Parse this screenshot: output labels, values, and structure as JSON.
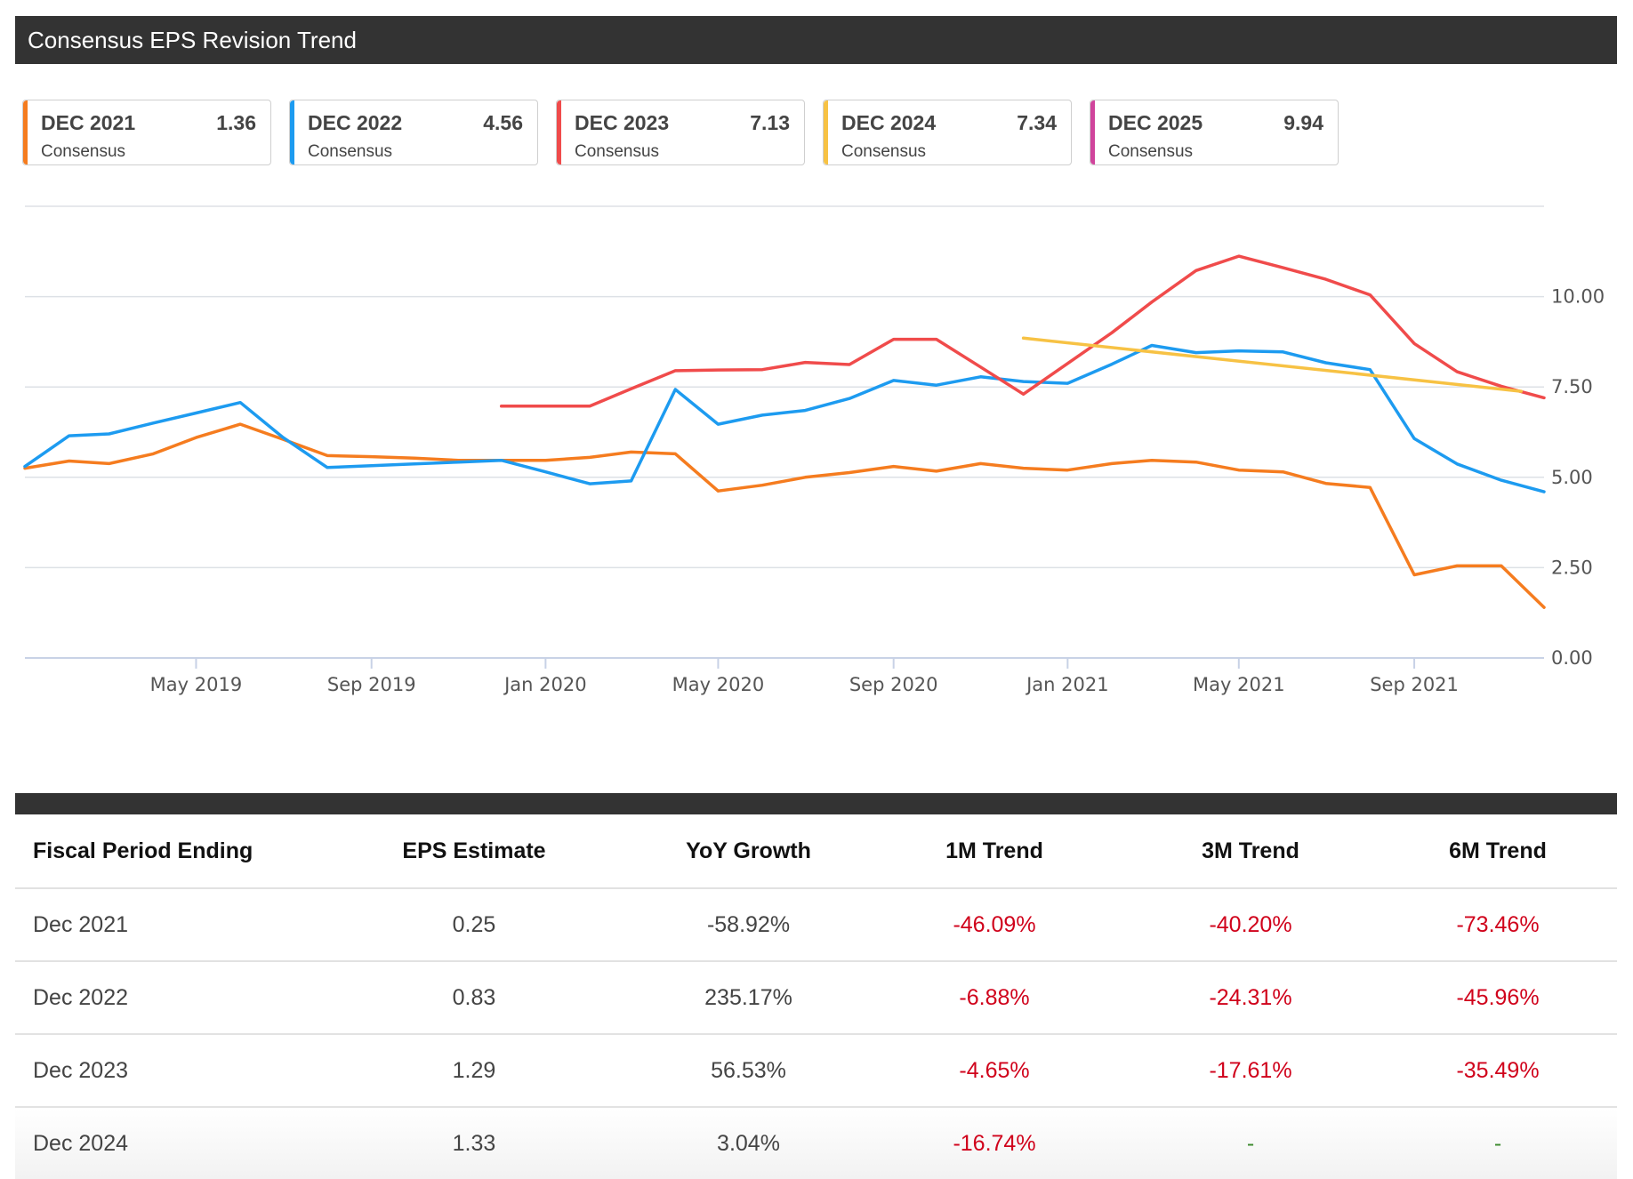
{
  "title": "Consensus EPS Revision Trend",
  "colors": {
    "dec2021": "#f57c1f",
    "dec2022": "#1d9bf0",
    "dec2023": "#f04b4b",
    "dec2024": "#f7c244",
    "dec2025": "#d0449c",
    "negative": "#d0021b"
  },
  "legend": [
    {
      "name": "DEC 2021",
      "value": "1.36",
      "sub": "Consensus",
      "color": "#f57c1f"
    },
    {
      "name": "DEC 2022",
      "value": "4.56",
      "sub": "Consensus",
      "color": "#1d9bf0"
    },
    {
      "name": "DEC 2023",
      "value": "7.13",
      "sub": "Consensus",
      "color": "#f04b4b"
    },
    {
      "name": "DEC 2024",
      "value": "7.34",
      "sub": "Consensus",
      "color": "#f7c244"
    },
    {
      "name": "DEC 2025",
      "value": "9.94",
      "sub": "Consensus",
      "color": "#d0449c"
    }
  ],
  "chart_data": {
    "type": "line",
    "xlim": [
      "2019-01-01",
      "2021-12-01"
    ],
    "ylim": [
      0,
      12.5
    ],
    "yticks": [
      0,
      2.5,
      5,
      7.5,
      10
    ],
    "ytick_labels": [
      "0.00",
      "2.50",
      "5.00",
      "7.50",
      "10.00"
    ],
    "xticks": [
      "2019-05-01",
      "2019-09-01",
      "2020-01-01",
      "2020-05-01",
      "2020-09-01",
      "2021-01-01",
      "2021-05-01",
      "2021-09-01"
    ],
    "xtick_labels": [
      "May 2019",
      "Sep 2019",
      "Jan 2020",
      "May 2020",
      "Sep 2020",
      "Jan 2021",
      "May 2021",
      "Sep 2021"
    ],
    "grid": true,
    "series": [
      {
        "name": "DEC 2021",
        "color": "#f57c1f",
        "points": [
          [
            "2019-01-01",
            5.25
          ],
          [
            "2019-02-01",
            5.45
          ],
          [
            "2019-03-01",
            5.38
          ],
          [
            "2019-04-01",
            5.65
          ],
          [
            "2019-05-01",
            6.1
          ],
          [
            "2019-06-01",
            6.47
          ],
          [
            "2019-07-01",
            6.05
          ],
          [
            "2019-08-01",
            5.6
          ],
          [
            "2019-09-01",
            5.57
          ],
          [
            "2019-10-01",
            5.53
          ],
          [
            "2019-11-01",
            5.47
          ],
          [
            "2019-12-01",
            5.47
          ],
          [
            "2020-01-01",
            5.47
          ],
          [
            "2020-02-01",
            5.55
          ],
          [
            "2020-03-01",
            5.7
          ],
          [
            "2020-04-01",
            5.65
          ],
          [
            "2020-05-01",
            4.62
          ],
          [
            "2020-06-01",
            4.78
          ],
          [
            "2020-07-01",
            5.0
          ],
          [
            "2020-08-01",
            5.13
          ],
          [
            "2020-09-01",
            5.3
          ],
          [
            "2020-10-01",
            5.17
          ],
          [
            "2020-11-01",
            5.38
          ],
          [
            "2020-12-01",
            5.25
          ],
          [
            "2021-01-01",
            5.2
          ],
          [
            "2021-02-01",
            5.38
          ],
          [
            "2021-03-01",
            5.47
          ],
          [
            "2021-04-01",
            5.42
          ],
          [
            "2021-05-01",
            5.2
          ],
          [
            "2021-06-01",
            5.15
          ],
          [
            "2021-07-01",
            4.83
          ],
          [
            "2021-08-01",
            4.72
          ],
          [
            "2021-09-01",
            2.3
          ],
          [
            "2021-10-01",
            2.55
          ],
          [
            "2021-11-01",
            2.55
          ],
          [
            "2021-12-01",
            1.4
          ]
        ]
      },
      {
        "name": "DEC 2022",
        "color": "#1d9bf0",
        "points": [
          [
            "2019-01-01",
            5.3
          ],
          [
            "2019-02-01",
            6.15
          ],
          [
            "2019-03-01",
            6.2
          ],
          [
            "2019-04-01",
            6.5
          ],
          [
            "2019-05-01",
            6.78
          ],
          [
            "2019-06-01",
            7.07
          ],
          [
            "2019-07-01",
            6.1
          ],
          [
            "2019-08-01",
            5.27
          ],
          [
            "2019-09-01",
            5.32
          ],
          [
            "2019-10-01",
            5.37
          ],
          [
            "2019-11-01",
            5.42
          ],
          [
            "2019-12-01",
            5.47
          ],
          [
            "2020-01-01",
            5.15
          ],
          [
            "2020-02-01",
            4.82
          ],
          [
            "2020-03-01",
            4.9
          ],
          [
            "2020-04-01",
            7.43
          ],
          [
            "2020-05-01",
            6.47
          ],
          [
            "2020-06-01",
            6.72
          ],
          [
            "2020-07-01",
            6.85
          ],
          [
            "2020-08-01",
            7.18
          ],
          [
            "2020-09-01",
            7.68
          ],
          [
            "2020-10-01",
            7.55
          ],
          [
            "2020-11-01",
            7.78
          ],
          [
            "2020-12-01",
            7.65
          ],
          [
            "2021-01-01",
            7.6
          ],
          [
            "2021-02-01",
            8.13
          ],
          [
            "2021-03-01",
            8.65
          ],
          [
            "2021-04-01",
            8.45
          ],
          [
            "2021-05-01",
            8.5
          ],
          [
            "2021-06-01",
            8.47
          ],
          [
            "2021-07-01",
            8.17
          ],
          [
            "2021-08-01",
            7.98
          ],
          [
            "2021-09-01",
            6.07
          ],
          [
            "2021-10-01",
            5.37
          ],
          [
            "2021-11-01",
            4.92
          ],
          [
            "2021-12-01",
            4.6
          ]
        ]
      },
      {
        "name": "DEC 2023",
        "color": "#f04b4b",
        "points": [
          [
            "2019-12-01",
            6.97
          ],
          [
            "2020-01-01",
            6.97
          ],
          [
            "2020-02-01",
            6.97
          ],
          [
            "2020-03-01",
            7.45
          ],
          [
            "2020-04-01",
            7.95
          ],
          [
            "2020-05-01",
            7.97
          ],
          [
            "2020-06-01",
            7.98
          ],
          [
            "2020-07-01",
            8.18
          ],
          [
            "2020-08-01",
            8.12
          ],
          [
            "2020-09-01",
            8.82
          ],
          [
            "2020-10-01",
            8.82
          ],
          [
            "2020-11-01",
            8.05
          ],
          [
            "2020-12-01",
            7.3
          ],
          [
            "2021-01-01",
            8.15
          ],
          [
            "2021-02-01",
            9.0
          ],
          [
            "2021-03-01",
            9.85
          ],
          [
            "2021-04-01",
            10.72
          ],
          [
            "2021-05-01",
            11.12
          ],
          [
            "2021-06-01",
            10.8
          ],
          [
            "2021-07-01",
            10.48
          ],
          [
            "2021-08-01",
            10.05
          ],
          [
            "2021-09-01",
            8.7
          ],
          [
            "2021-10-01",
            7.92
          ],
          [
            "2021-11-01",
            7.52
          ],
          [
            "2021-12-01",
            7.2
          ]
        ]
      },
      {
        "name": "DEC 2024",
        "color": "#f7c244",
        "points": [
          [
            "2020-12-01",
            8.85
          ],
          [
            "2021-11-15",
            7.38
          ]
        ]
      }
    ]
  },
  "table": {
    "headers": [
      "Fiscal Period Ending",
      "EPS Estimate",
      "YoY Growth",
      "1M Trend",
      "3M Trend",
      "6M Trend"
    ],
    "rows": [
      [
        "Dec 2021",
        "0.25",
        "-58.92%",
        "-46.09%",
        "-40.20%",
        "-73.46%"
      ],
      [
        "Dec 2022",
        "0.83",
        "235.17%",
        "-6.88%",
        "-24.31%",
        "-45.96%"
      ],
      [
        "Dec 2023",
        "1.29",
        "56.53%",
        "-4.65%",
        "-17.61%",
        "-35.49%"
      ],
      [
        "Dec 2024",
        "1.33",
        "3.04%",
        "-16.74%",
        "-",
        "-"
      ]
    ]
  }
}
